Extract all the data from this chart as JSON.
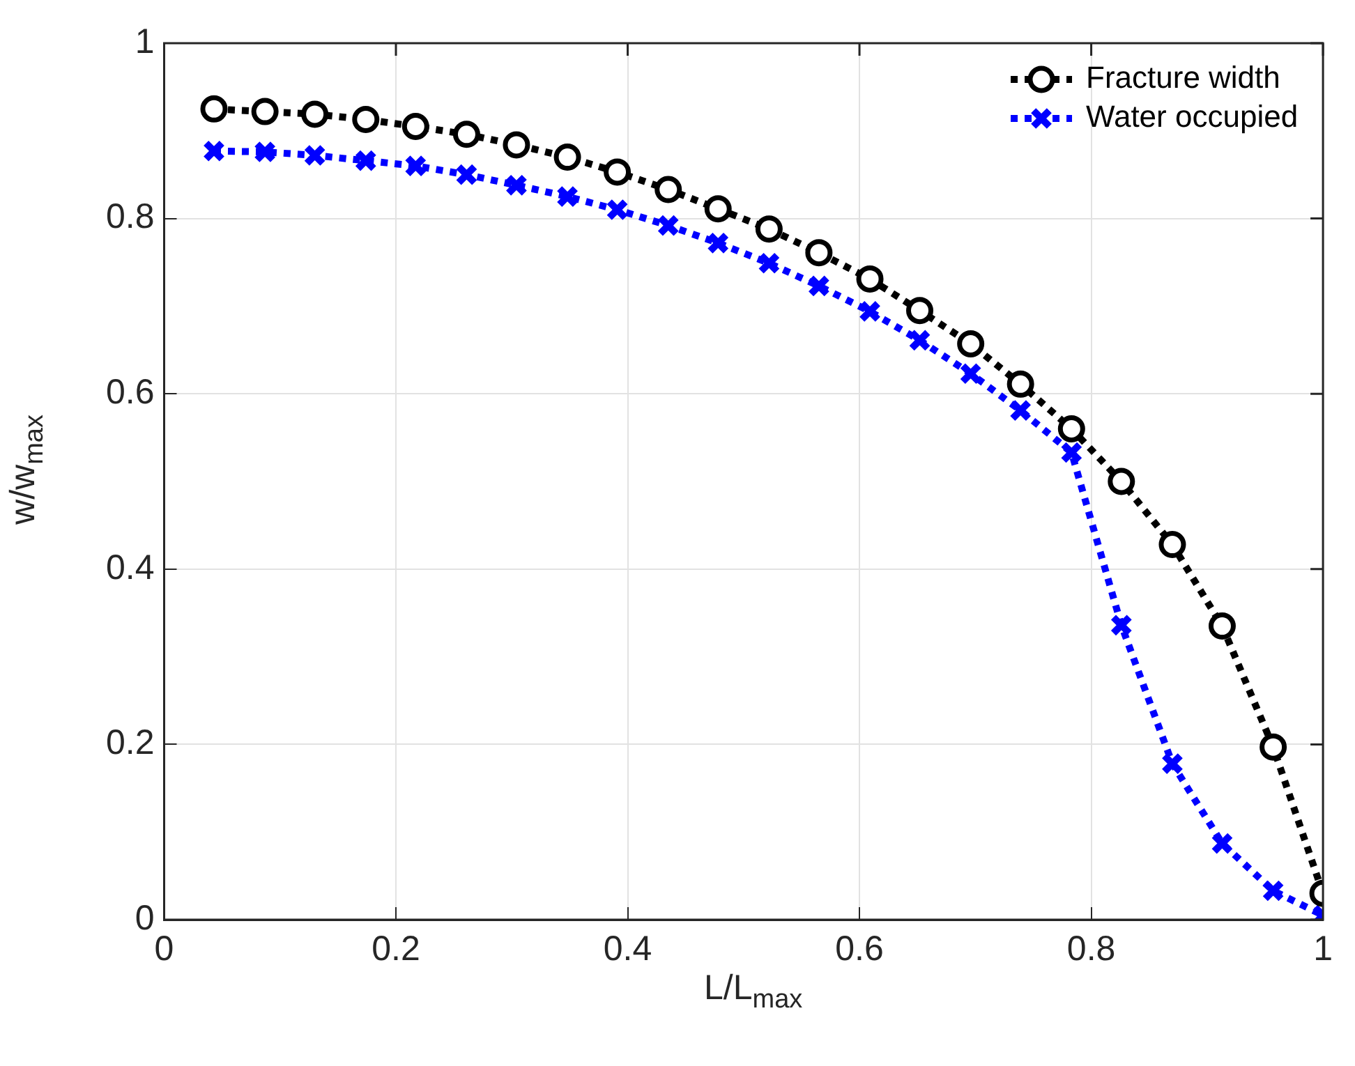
{
  "chart_data": {
    "type": "line",
    "xlabel": "L/L$_{max}$",
    "ylabel": "w/w$_{max}$",
    "x": [
      0.043,
      0.087,
      0.13,
      0.174,
      0.217,
      0.261,
      0.304,
      0.348,
      0.391,
      0.435,
      0.478,
      0.522,
      0.565,
      0.609,
      0.652,
      0.696,
      0.739,
      0.783,
      0.826,
      0.87,
      0.913,
      0.957,
      1.0
    ],
    "series": [
      {
        "name": "Fracture width",
        "color": "#000000",
        "marker": "circle",
        "values": [
          0.925,
          0.922,
          0.919,
          0.913,
          0.905,
          0.896,
          0.884,
          0.87,
          0.853,
          0.833,
          0.811,
          0.788,
          0.761,
          0.731,
          0.695,
          0.657,
          0.611,
          0.56,
          0.5,
          0.428,
          0.335,
          0.197,
          0.03
        ]
      },
      {
        "name": "Water occupied",
        "color": "#0000ff",
        "marker": "cross",
        "values": [
          0.877,
          0.876,
          0.872,
          0.866,
          0.86,
          0.85,
          0.838,
          0.825,
          0.81,
          0.792,
          0.772,
          0.749,
          0.723,
          0.694,
          0.661,
          0.623,
          0.581,
          0.533,
          0.336,
          0.178,
          0.087,
          0.033,
          0.005
        ]
      }
    ],
    "xlim": [
      0,
      1
    ],
    "xticks": [
      0,
      0.2,
      0.4,
      0.6,
      0.8,
      1
    ],
    "ylim": [
      0,
      1
    ],
    "yticks": [
      0,
      0.2,
      0.4,
      0.6,
      0.8,
      1
    ],
    "grid": true,
    "legend": "top right",
    "line_style": "dotted"
  }
}
